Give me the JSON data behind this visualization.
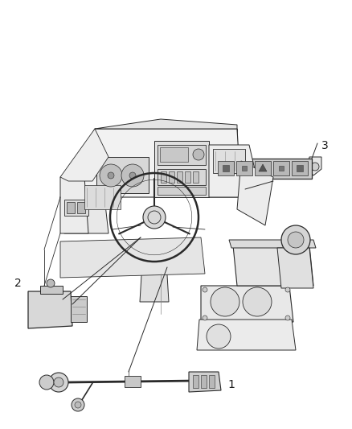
{
  "background_color": "#ffffff",
  "figsize": [
    4.38,
    5.33
  ],
  "dpi": 100,
  "lc": "#2a2a2a",
  "lc_light": "#888888",
  "lw": 0.8,
  "labels": {
    "1": [
      0.56,
      0.11
    ],
    "2": [
      0.09,
      0.44
    ],
    "3": [
      0.78,
      0.72
    ]
  }
}
